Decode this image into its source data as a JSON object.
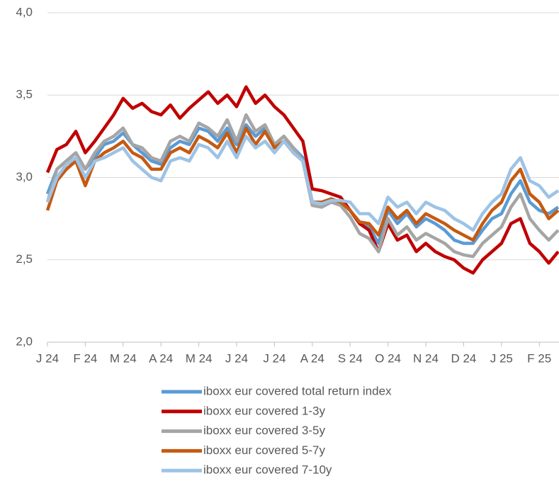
{
  "chart_data": {
    "type": "line",
    "categories": [
      "J 24",
      null,
      null,
      null,
      "F 24",
      null,
      null,
      null,
      "M 24",
      null,
      null,
      null,
      "A 24",
      null,
      null,
      null,
      "M 24",
      null,
      null,
      null,
      "J 24",
      null,
      null,
      null,
      "J 24",
      null,
      null,
      null,
      "A 24",
      null,
      null,
      null,
      "S 24",
      null,
      null,
      null,
      "O 24",
      null,
      null,
      null,
      "N 24",
      null,
      null,
      null,
      "D 24",
      null,
      null,
      null,
      "J 25",
      null,
      null,
      null,
      "F 25",
      null,
      null
    ],
    "ylim": [
      2.0,
      4.0
    ],
    "yticks": [
      {
        "value": 2.0,
        "label": "2,0"
      },
      {
        "value": 2.5,
        "label": "2,5"
      },
      {
        "value": 3.0,
        "label": "3,0"
      },
      {
        "value": 3.5,
        "label": "3,5"
      },
      {
        "value": 4.0,
        "label": "4,0"
      }
    ],
    "grid": true,
    "legend": "bottom",
    "series": [
      {
        "name": "iboxx eur covered total return index",
        "color": "#5b9bd5",
        "values": [
          2.9,
          3.05,
          3.1,
          3.15,
          3.05,
          3.12,
          3.2,
          3.22,
          3.27,
          3.2,
          3.15,
          3.1,
          3.08,
          3.18,
          3.22,
          3.2,
          3.3,
          3.28,
          3.22,
          3.3,
          3.2,
          3.32,
          3.25,
          3.3,
          3.2,
          3.25,
          3.18,
          3.12,
          2.85,
          2.85,
          2.87,
          2.85,
          2.8,
          2.72,
          2.7,
          2.6,
          2.8,
          2.72,
          2.78,
          2.7,
          2.75,
          2.72,
          2.68,
          2.62,
          2.6,
          2.6,
          2.68,
          2.75,
          2.78,
          2.9,
          2.98,
          2.85,
          2.8,
          2.78,
          2.82
        ]
      },
      {
        "name": "iboxx eur covered 1-3y",
        "color": "#c00000",
        "values": [
          3.03,
          3.17,
          3.2,
          3.28,
          3.15,
          3.22,
          3.3,
          3.38,
          3.48,
          3.42,
          3.45,
          3.4,
          3.38,
          3.44,
          3.36,
          3.42,
          3.47,
          3.52,
          3.45,
          3.5,
          3.43,
          3.55,
          3.45,
          3.5,
          3.43,
          3.38,
          3.3,
          3.22,
          2.93,
          2.92,
          2.9,
          2.88,
          2.8,
          2.72,
          2.68,
          2.55,
          2.72,
          2.62,
          2.65,
          2.55,
          2.6,
          2.55,
          2.52,
          2.5,
          2.45,
          2.42,
          2.5,
          2.55,
          2.6,
          2.72,
          2.75,
          2.6,
          2.55,
          2.48,
          2.55
        ]
      },
      {
        "name": "iboxx eur covered 3-5y",
        "color": "#a5a5a5",
        "values": [
          2.85,
          3.05,
          3.1,
          3.15,
          3.05,
          3.15,
          3.22,
          3.25,
          3.3,
          3.2,
          3.18,
          3.12,
          3.1,
          3.22,
          3.25,
          3.22,
          3.33,
          3.3,
          3.25,
          3.35,
          3.22,
          3.38,
          3.28,
          3.32,
          3.2,
          3.25,
          3.18,
          3.1,
          2.83,
          2.82,
          2.85,
          2.83,
          2.76,
          2.66,
          2.63,
          2.55,
          2.75,
          2.65,
          2.7,
          2.62,
          2.66,
          2.63,
          2.6,
          2.55,
          2.53,
          2.52,
          2.6,
          2.65,
          2.7,
          2.82,
          2.9,
          2.75,
          2.68,
          2.62,
          2.68
        ]
      },
      {
        "name": "iboxx eur covered 5-7y",
        "color": "#c55a11",
        "values": [
          2.8,
          2.98,
          3.05,
          3.1,
          2.95,
          3.1,
          3.15,
          3.18,
          3.22,
          3.15,
          3.12,
          3.05,
          3.05,
          3.15,
          3.18,
          3.15,
          3.25,
          3.22,
          3.18,
          3.27,
          3.15,
          3.3,
          3.2,
          3.28,
          3.18,
          3.22,
          3.15,
          3.1,
          2.85,
          2.85,
          2.87,
          2.85,
          2.8,
          2.73,
          2.72,
          2.65,
          2.82,
          2.75,
          2.8,
          2.72,
          2.78,
          2.75,
          2.72,
          2.68,
          2.65,
          2.62,
          2.72,
          2.8,
          2.85,
          2.98,
          3.05,
          2.9,
          2.85,
          2.75,
          2.8
        ]
      },
      {
        "name": "iboxx eur covered 7-10y",
        "color": "#9dc3e6",
        "values": [
          2.85,
          3.0,
          3.08,
          3.12,
          3.0,
          3.1,
          3.12,
          3.15,
          3.18,
          3.1,
          3.05,
          3.0,
          2.98,
          3.1,
          3.12,
          3.1,
          3.2,
          3.18,
          3.12,
          3.22,
          3.12,
          3.25,
          3.18,
          3.22,
          3.15,
          3.22,
          3.15,
          3.1,
          2.85,
          2.84,
          2.86,
          2.86,
          2.85,
          2.78,
          2.78,
          2.72,
          2.88,
          2.82,
          2.85,
          2.78,
          2.85,
          2.82,
          2.8,
          2.75,
          2.72,
          2.68,
          2.78,
          2.85,
          2.9,
          3.05,
          3.12,
          2.98,
          2.95,
          2.88,
          2.92
        ]
      }
    ]
  }
}
